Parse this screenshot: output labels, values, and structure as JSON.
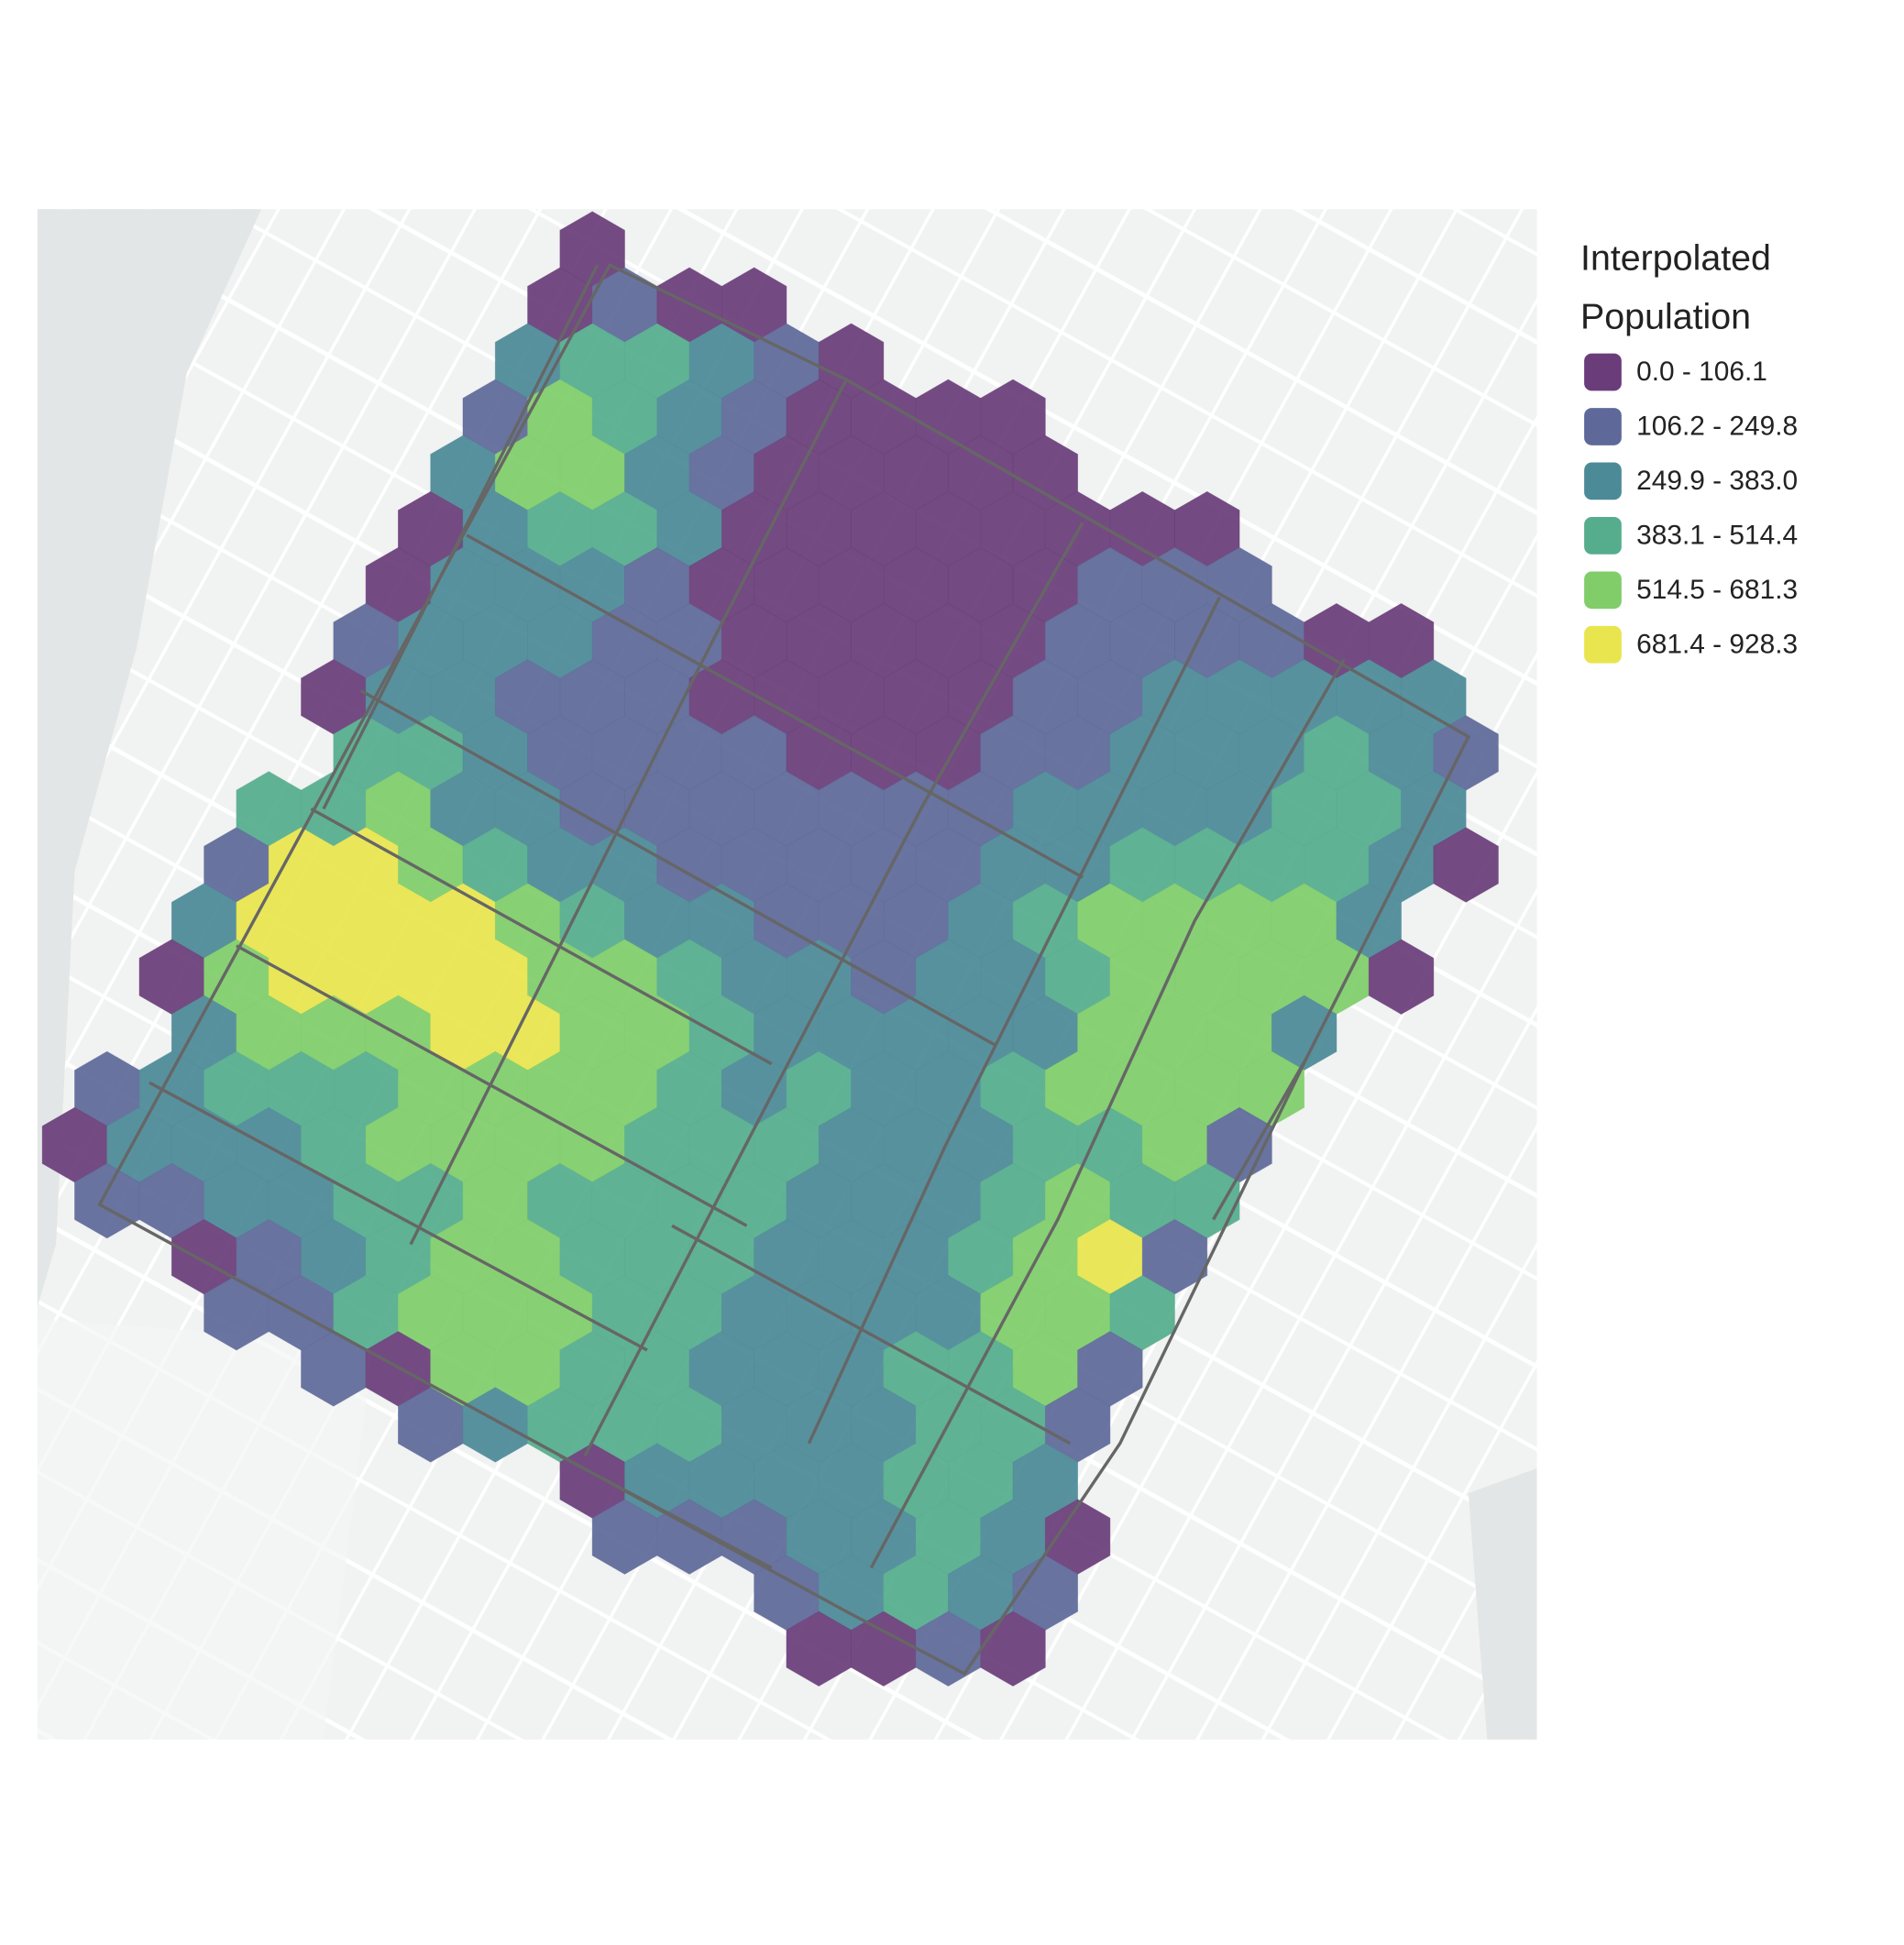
{
  "map": {
    "legend": {
      "title": [
        "Interpolated",
        "Population"
      ],
      "items": [
        {
          "label": "0.0 - 106.1",
          "color": "#6a3d7a"
        },
        {
          "label": "106.2 - 249.8",
          "color": "#5e6999"
        },
        {
          "label": "249.9 - 383.0",
          "color": "#4c8a98"
        },
        {
          "label": "383.1 - 514.4",
          "color": "#55ad8e"
        },
        {
          "label": "514.5 - 681.3",
          "color": "#80cd6a"
        },
        {
          "label": "681.4 - 928.3",
          "color": "#e9e54f"
        }
      ]
    },
    "hex_rows": [
      [
        null,
        null,
        null,
        null,
        null,
        null,
        null,
        null,
        0
      ],
      [
        null,
        null,
        null,
        null,
        null,
        null,
        null,
        0,
        1,
        0,
        0
      ],
      [
        null,
        null,
        null,
        null,
        null,
        null,
        null,
        2,
        3,
        3,
        2,
        1,
        0
      ],
      [
        null,
        null,
        null,
        null,
        null,
        null,
        1,
        4,
        3,
        2,
        1,
        0,
        0,
        0,
        0
      ],
      [
        null,
        null,
        null,
        null,
        null,
        null,
        2,
        4,
        4,
        2,
        1,
        0,
        0,
        0,
        0,
        0
      ],
      [
        null,
        null,
        null,
        null,
        null,
        0,
        2,
        3,
        3,
        2,
        0,
        0,
        0,
        0,
        0,
        0,
        0,
        0
      ],
      [
        null,
        null,
        null,
        null,
        null,
        0,
        2,
        2,
        2,
        1,
        0,
        0,
        0,
        0,
        0,
        0,
        1,
        1,
        1
      ],
      [
        null,
        null,
        null,
        null,
        1,
        2,
        2,
        2,
        1,
        1,
        0,
        0,
        0,
        0,
        0,
        1,
        1,
        1,
        1,
        0,
        0
      ],
      [
        null,
        null,
        null,
        null,
        0,
        2,
        2,
        1,
        1,
        1,
        0,
        0,
        0,
        0,
        0,
        1,
        1,
        2,
        2,
        2,
        2,
        2
      ],
      [
        null,
        null,
        null,
        null,
        3,
        3,
        2,
        1,
        1,
        1,
        1,
        0,
        0,
        0,
        1,
        1,
        2,
        2,
        2,
        3,
        2,
        1
      ],
      [
        null,
        null,
        null,
        3,
        3,
        4,
        2,
        2,
        1,
        1,
        1,
        1,
        1,
        1,
        1,
        2,
        2,
        2,
        2,
        3,
        3,
        2
      ],
      [
        null,
        null,
        1,
        5,
        5,
        4,
        3,
        2,
        2,
        1,
        1,
        1,
        1,
        1,
        2,
        2,
        3,
        3,
        3,
        3,
        2,
        0
      ],
      [
        null,
        null,
        2,
        5,
        5,
        5,
        5,
        4,
        3,
        2,
        2,
        1,
        1,
        1,
        2,
        3,
        4,
        4,
        4,
        4,
        2
      ],
      [
        null,
        0,
        4,
        5,
        5,
        5,
        5,
        4,
        4,
        3,
        2,
        2,
        1,
        2,
        2,
        3,
        4,
        4,
        4,
        4,
        0
      ],
      [
        null,
        null,
        2,
        4,
        4,
        4,
        5,
        5,
        4,
        4,
        3,
        2,
        2,
        2,
        2,
        2,
        4,
        4,
        4,
        2
      ],
      [
        1,
        2,
        3,
        3,
        3,
        4,
        4,
        4,
        4,
        3,
        2,
        3,
        2,
        2,
        3,
        4,
        4,
        4,
        4
      ],
      [
        0,
        2,
        2,
        2,
        3,
        4,
        4,
        4,
        4,
        3,
        3,
        3,
        2,
        2,
        2,
        3,
        3,
        4,
        1
      ],
      [
        1,
        1,
        2,
        2,
        3,
        3,
        4,
        3,
        3,
        3,
        3,
        2,
        2,
        2,
        3,
        4,
        3,
        3
      ],
      [
        null,
        null,
        0,
        1,
        2,
        3,
        4,
        4,
        3,
        3,
        3,
        2,
        2,
        2,
        3,
        4,
        5,
        1
      ],
      [
        null,
        null,
        1,
        1,
        3,
        4,
        4,
        4,
        3,
        3,
        2,
        2,
        2,
        2,
        4,
        4,
        3
      ],
      [
        null,
        null,
        null,
        null,
        1,
        0,
        4,
        4,
        3,
        3,
        2,
        2,
        2,
        3,
        3,
        4,
        1
      ],
      [
        null,
        null,
        null,
        null,
        null,
        1,
        2,
        3,
        3,
        3,
        2,
        2,
        2,
        3,
        3,
        1
      ],
      [
        null,
        null,
        null,
        null,
        null,
        null,
        null,
        null,
        0,
        2,
        2,
        2,
        2,
        3,
        3,
        2
      ],
      [
        null,
        null,
        null,
        null,
        null,
        null,
        null,
        null,
        1,
        1,
        1,
        2,
        2,
        3,
        2,
        0
      ],
      [
        null,
        null,
        null,
        null,
        null,
        null,
        null,
        null,
        null,
        null,
        null,
        1,
        2,
        3,
        2,
        1
      ],
      [
        null,
        null,
        null,
        null,
        null,
        null,
        null,
        null,
        null,
        null,
        null,
        0,
        0,
        1,
        0
      ]
    ]
  }
}
